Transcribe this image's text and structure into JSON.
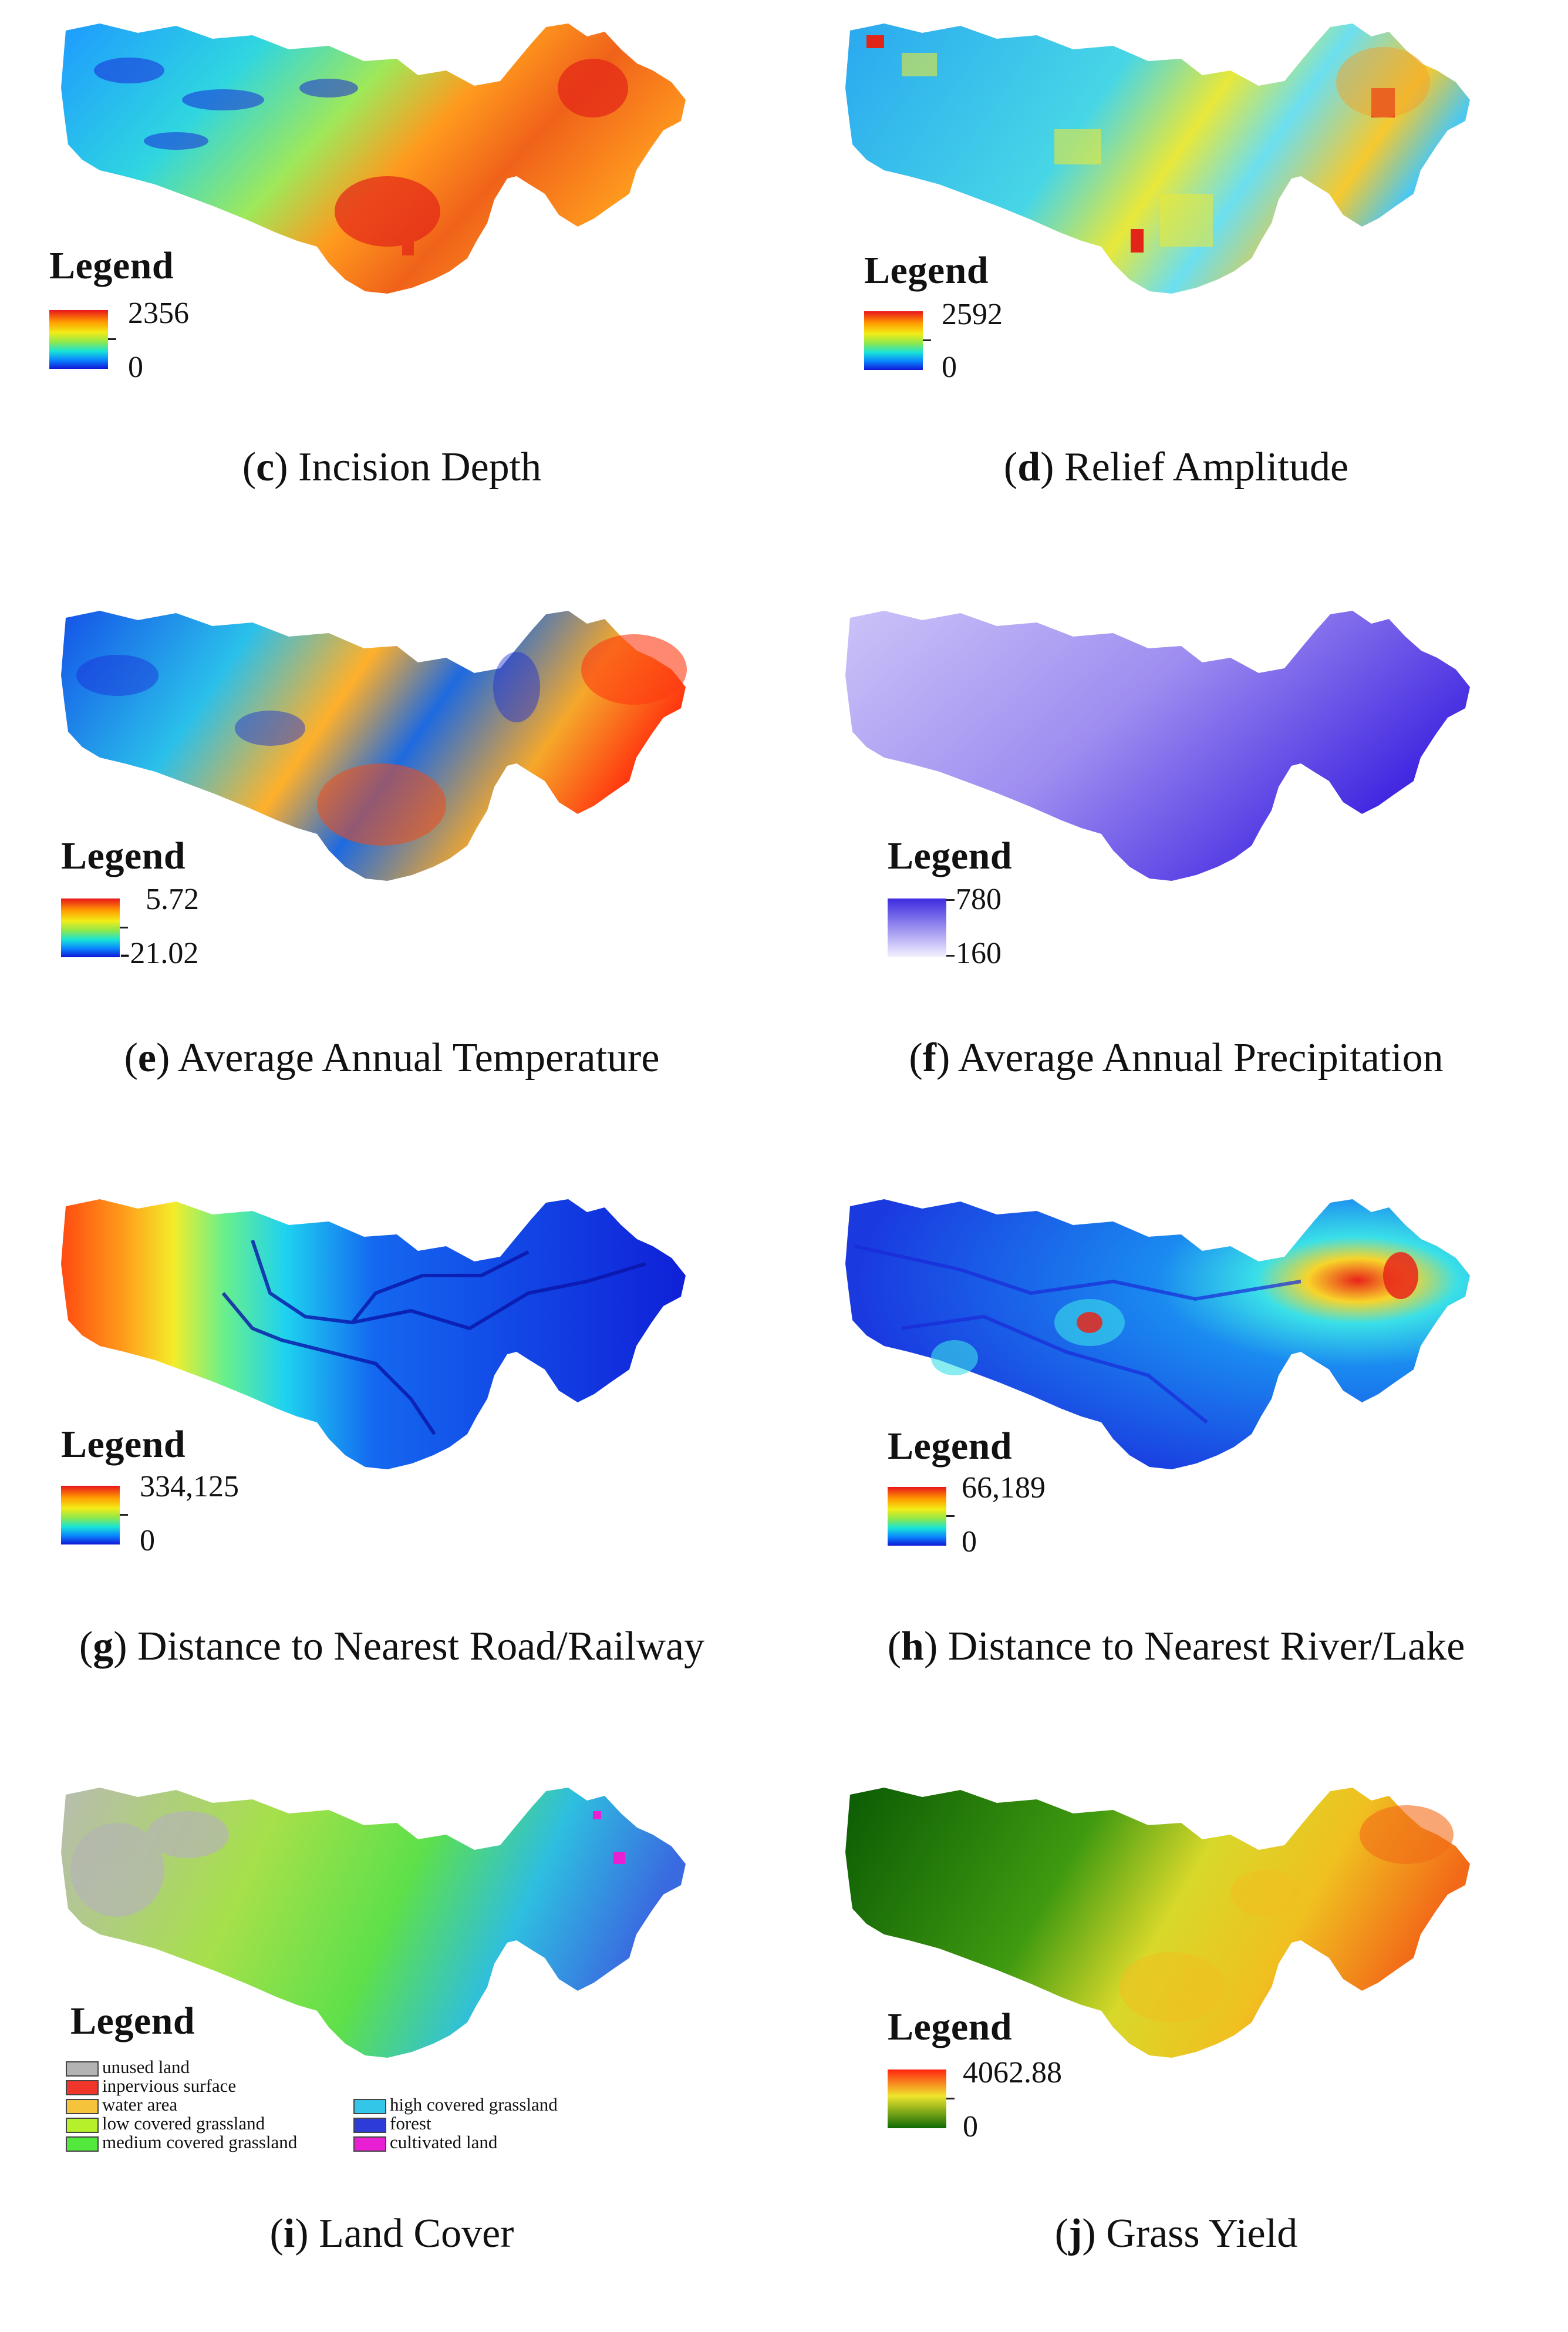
{
  "colors": {
    "rainbow": [
      "#e8151b",
      "#ff9a00",
      "#f3ec16",
      "#8ae84f",
      "#18e4d6",
      "#0a86ff",
      "#1017d6"
    ],
    "precip_high": "#3e2be0",
    "precip_low": "#ffffff",
    "grass_high": "#ff2410",
    "grass_mid": "#efe52c",
    "grass_low": "#0e6a06"
  },
  "panels": [
    {
      "id": "c",
      "caption_letter": "c",
      "caption_text": "Incision Depth",
      "legend_title": "Legend",
      "max": "2356",
      "min": "0",
      "scheme": "rainbow",
      "icon": "incision-depth-map"
    },
    {
      "id": "d",
      "caption_letter": "d",
      "caption_text": "Relief Amplitude",
      "legend_title": "Legend",
      "max": "2592",
      "min": "0",
      "scheme": "rainbow",
      "icon": "relief-amplitude-map"
    },
    {
      "id": "e",
      "caption_letter": "e",
      "caption_text": "Average Annual Temperature",
      "legend_title": "Legend",
      "max": "5.72",
      "min": "-21.02",
      "scheme": "rainbow",
      "icon": "temperature-map"
    },
    {
      "id": "f",
      "caption_letter": "f",
      "caption_text": "Average Annual Precipitation",
      "legend_title": "Legend",
      "max": "780",
      "min": "160",
      "scheme": "precip",
      "icon": "precipitation-map"
    },
    {
      "id": "g",
      "caption_letter": "g",
      "caption_text": "Distance to Nearest Road/Railway",
      "legend_title": "Legend",
      "max": "334,125",
      "min": "0",
      "scheme": "rainbow",
      "icon": "road-distance-map"
    },
    {
      "id": "h",
      "caption_letter": "h",
      "caption_text": "Distance to Nearest River/Lake",
      "legend_title": "Legend",
      "max": "66,189",
      "min": "0",
      "scheme": "rainbow",
      "icon": "river-distance-map"
    },
    {
      "id": "i",
      "caption_letter": "i",
      "caption_text": "Land Cover",
      "legend_title": "Legend",
      "scheme": "landcover",
      "icon": "land-cover-map"
    },
    {
      "id": "j",
      "caption_letter": "j",
      "caption_text": "Grass Yield",
      "legend_title": "Legend",
      "max": "4062.88",
      "min": "0",
      "scheme": "grass",
      "icon": "grass-yield-map"
    }
  ],
  "land_cover_classes": [
    {
      "label": "unused land",
      "color": "#b3b3b3"
    },
    {
      "label": "inpervious surface",
      "color": "#f0352a"
    },
    {
      "label": "water area",
      "color": "#f5c33c"
    },
    {
      "label": "low covered grassland",
      "color": "#b6f02a"
    },
    {
      "label": "medium covered grassland",
      "color": "#53e83c"
    },
    {
      "label": "high covered grassland",
      "color": "#34c6e8"
    },
    {
      "label": "forest",
      "color": "#2d3cd8"
    },
    {
      "label": "cultivated land",
      "color": "#e81fd2"
    }
  ]
}
